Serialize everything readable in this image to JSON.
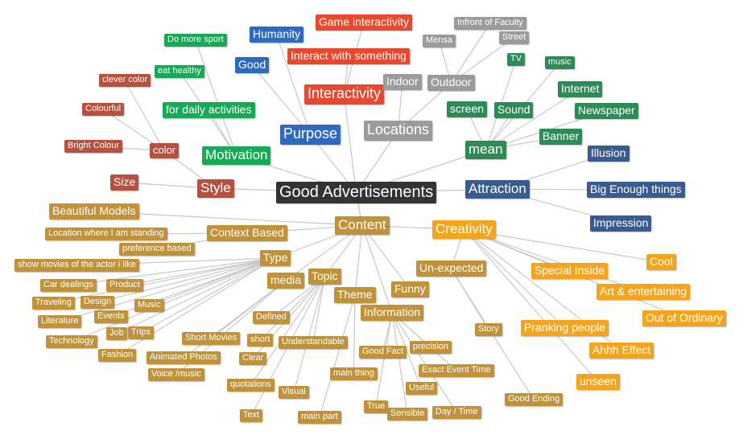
{
  "colors": {
    "root": "#333333",
    "red": "#e8492e",
    "darkred": "#b6503f",
    "green": "#18a957",
    "darkgreen": "#2e8b57",
    "blue": "#2e6bc0",
    "navy": "#3b5a8e",
    "gray": "#9b9b9b",
    "gold": "#c0923a",
    "orange": "#f5a51c",
    "edge": "#c8c8c8"
  },
  "nodes": {
    "root": "Good Advertisements",
    "style": "Style",
    "size": "Size",
    "color": "color",
    "bright_colour": "Bright Colour",
    "colourful": "Colourful",
    "clever_color": "clever color",
    "motivation": "Motivation",
    "daily": "for daily activities",
    "eat_healthy": "eat healthy",
    "more_sport": "Do more sport",
    "purpose": "Purpose",
    "good": "Good",
    "humanity": "Humanity",
    "interactivity": "Interactivity",
    "interact_something": "Interact with something",
    "game_interactivity": "Game interactivity",
    "locations": "Locations",
    "indoor": "Indoor",
    "outdoor": "Outdoor",
    "mensa": "Mensa",
    "infront": "Infront of Faculty",
    "street": "Street",
    "mean": "mean",
    "screen": "screen",
    "sound": "Sound",
    "tv": "TV",
    "music_g": "music",
    "internet": "Internet",
    "newspaper": "Newspaper",
    "banner": "Banner",
    "attraction": "Attraction",
    "illusion": "Illusion",
    "big_enough": "Big Enough things",
    "impression": "Impression",
    "content": "Content",
    "beautiful_models": "Beautiful Models",
    "context_based": "Context Based",
    "location_standing": "Location where I am standing",
    "preference_based": "preference based",
    "type": "Type",
    "show_movies": "show movies of the actor i like",
    "car_dealings": "Car dealings",
    "product": "Product",
    "traveling": "Traveling",
    "design": "Design",
    "music_t": "Music",
    "literature": "Literature",
    "events": "Events",
    "technology": "Technology",
    "job": "Job",
    "trips": "Trips",
    "fashion": "Fashion",
    "media": "media",
    "topic": "Topic",
    "short_movies": "Short Movies",
    "animated_photos": "Animated Photos",
    "voice_music": "Voice /music",
    "defined": "Defined",
    "short": "short",
    "clear": "Clear",
    "understandable": "Understandable",
    "quotations": "quotations",
    "visual": "Visual",
    "text": "Text",
    "theme": "Theme",
    "main_thing": "main thing",
    "main_part": "main part",
    "funny": "Funny",
    "information": "Information",
    "good_fact": "Good Fact",
    "precision": "precision",
    "exact_event_time": "Exact Event Time",
    "useful": "Useful",
    "true": "True",
    "sensible": "Sensible",
    "day_time": "Day / Time",
    "creativity": "Creativity",
    "unexpected": "Un-expected",
    "story": "Story",
    "good_ending": "Good Ending",
    "special_inside": "Special Inside",
    "cool": "Cool",
    "art_entertaining": "Art & entertaining",
    "out_of_ordinary": "Out of Ordinary",
    "pranking": "Pranking people",
    "ahhh": "Ahhh Effect",
    "unseen": "unseen"
  }
}
